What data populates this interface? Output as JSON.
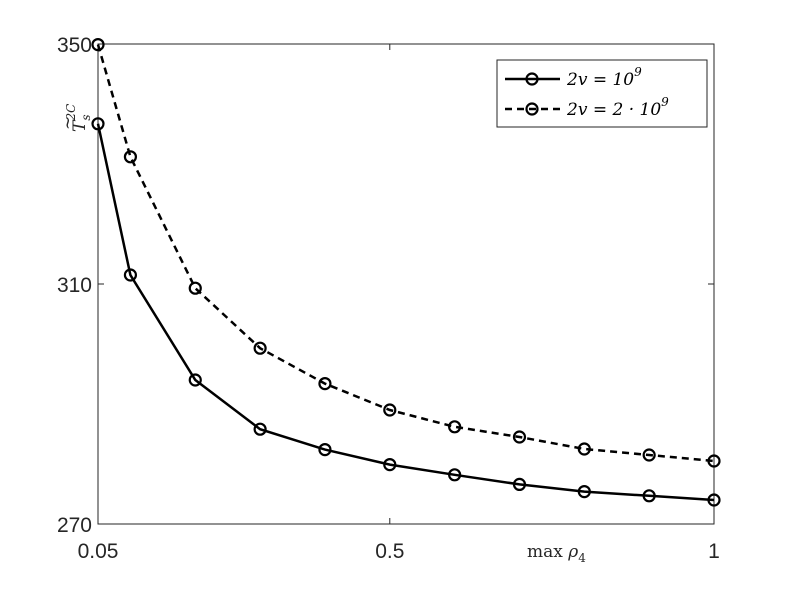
{
  "chart_data": {
    "type": "line",
    "xlabel": "max ρ4",
    "ylabel": "T̃s2C",
    "xlim": [
      0.05,
      1
    ],
    "ylim": [
      270,
      350
    ],
    "xticks": [
      {
        "value": 0.05,
        "label": "0.05"
      },
      {
        "value": 0.5,
        "label": "0.5"
      },
      {
        "value": 1,
        "label": "1"
      }
    ],
    "yticks": [
      {
        "value": 270,
        "label": "270"
      },
      {
        "value": 310,
        "label": "310"
      },
      {
        "value": 350,
        "label": "350"
      }
    ],
    "grid": false,
    "legend": "top-right",
    "x": [
      0.05,
      0.1,
      0.2,
      0.3,
      0.4,
      0.5,
      0.6,
      0.7,
      0.8,
      0.9,
      1.0
    ],
    "series": [
      {
        "name": "2v = 10^9",
        "legend_base": "2v = 10",
        "legend_exp": "9",
        "style": "solid",
        "color": "#000000",
        "values": [
          336.7,
          311.5,
          294.0,
          285.8,
          282.4,
          279.9,
          278.2,
          276.6,
          275.4,
          274.7,
          274.0
        ]
      },
      {
        "name": "2v = 2·10^9",
        "legend_base": "2v = 2 · 10",
        "legend_exp": "9",
        "style": "dashed",
        "color": "#000000",
        "values": [
          349.9,
          331.2,
          309.3,
          299.3,
          293.4,
          289.0,
          286.2,
          284.5,
          282.5,
          281.5,
          280.5
        ]
      }
    ]
  }
}
